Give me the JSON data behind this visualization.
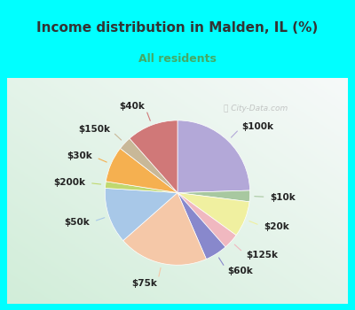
{
  "title": "Income distribution in Malden, IL (%)",
  "subtitle": "All residents",
  "background_color": "#00FFFF",
  "watermark": "City-Data.com",
  "slices": [
    {
      "label": "$100k",
      "value": 24.5,
      "color": "#b3a8d8"
    },
    {
      "label": "$10k",
      "value": 2.5,
      "color": "#a8c8a0"
    },
    {
      "label": "$20k",
      "value": 8.0,
      "color": "#f0f0a0"
    },
    {
      "label": "$125k",
      "value": 3.5,
      "color": "#f0b8c0"
    },
    {
      "label": "$60k",
      "value": 5.0,
      "color": "#8888cc"
    },
    {
      "label": "$75k",
      "value": 20.0,
      "color": "#f5c8a8"
    },
    {
      "label": "$50k",
      "value": 12.5,
      "color": "#a8c8e8"
    },
    {
      "label": "$200k",
      "value": 1.5,
      "color": "#c0d870"
    },
    {
      "label": "$30k",
      "value": 8.0,
      "color": "#f5b050"
    },
    {
      "label": "$150k",
      "value": 3.0,
      "color": "#c8b898"
    },
    {
      "label": "$40k",
      "value": 11.5,
      "color": "#d07878"
    }
  ],
  "title_fontsize": 11,
  "subtitle_fontsize": 9,
  "label_fontsize": 7.5,
  "title_color": "#333333",
  "subtitle_color": "#44aa66"
}
